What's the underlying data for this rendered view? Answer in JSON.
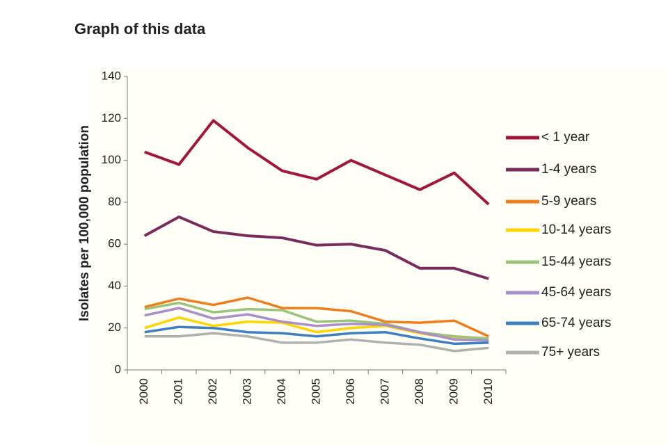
{
  "heading": "Graph of this data",
  "chart_data": {
    "type": "line",
    "y_label": "Isolates per 100,000  population",
    "categories": [
      "2000",
      "2001",
      "2002",
      "2003",
      "2004",
      "2005",
      "2006",
      "2007",
      "2008",
      "2009",
      "2010"
    ],
    "ylim": [
      0,
      140
    ],
    "yticks": [
      0,
      20,
      40,
      60,
      80,
      100,
      120,
      140
    ],
    "grid": false,
    "series": [
      {
        "name": "< 1 year",
        "color": "#a3143f",
        "values": [
          104,
          98,
          119,
          106,
          95,
          91,
          100,
          93,
          86,
          94,
          79
        ]
      },
      {
        "name": "1-4 years",
        "color": "#7a2a5c",
        "values": [
          64,
          73,
          66,
          64,
          63,
          59.5,
          60,
          57,
          48.5,
          48.5,
          43.5
        ]
      },
      {
        "name": "5-9 years",
        "color": "#f07d1a",
        "values": [
          30,
          34,
          31,
          34.5,
          29.5,
          29.5,
          28,
          23,
          22.5,
          23.5,
          16
        ]
      },
      {
        "name": "10-14 years",
        "color": "#ffd400",
        "values": [
          20,
          25,
          21,
          23,
          22.5,
          18,
          20,
          21,
          17.5,
          15,
          15
        ]
      },
      {
        "name": "15-44 years",
        "color": "#9bc47b",
        "values": [
          29,
          32,
          27.5,
          29,
          28.5,
          23,
          23.5,
          22,
          18,
          16,
          15
        ]
      },
      {
        "name": "45-64 years",
        "color": "#a98fc9",
        "values": [
          26,
          29.5,
          24.5,
          26.5,
          23,
          21,
          22,
          21.5,
          18,
          14.5,
          14
        ]
      },
      {
        "name": "65-74 years",
        "color": "#3d7fc1",
        "values": [
          18,
          20.5,
          20,
          18,
          17.5,
          16,
          17.5,
          18,
          15,
          12.5,
          13
        ]
      },
      {
        "name": "75+ years",
        "color": "#b0b0b0",
        "values": [
          16,
          16,
          17.5,
          16,
          13,
          13,
          14.5,
          13,
          12,
          9,
          10.5
        ]
      }
    ]
  }
}
